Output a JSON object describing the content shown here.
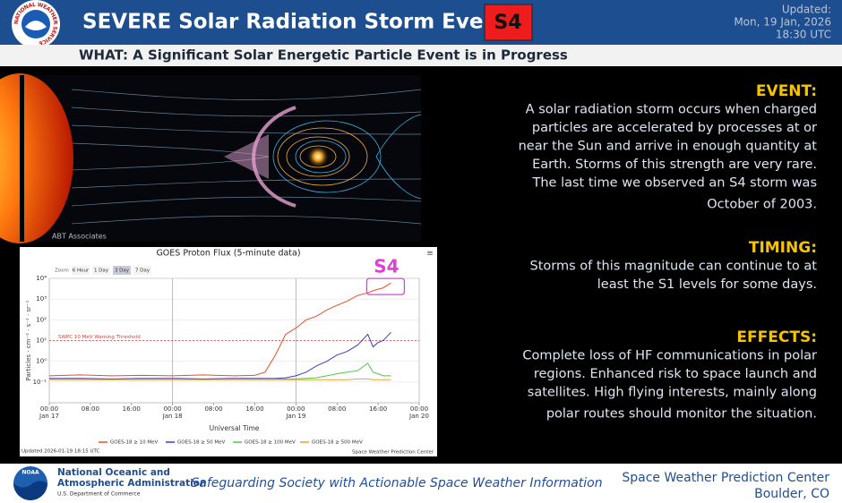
{
  "header": {
    "logo_text": "NATIONAL WEATHER SERVICE",
    "title": "SEVERE Solar Radiation Storm Event",
    "badge": "S4",
    "updated_label": "Updated:",
    "updated_date": "Mon, 19 Jan, 2026",
    "updated_time": "18:30 UTC"
  },
  "subheader": "WHAT: A Significant Solar Energetic Particle Event is in Progress",
  "image_credit": "ABT Associates",
  "sections": [
    {
      "heading": "EVENT:",
      "lines": [
        "A solar radiation storm occurs when charged",
        "particles are accelerated by processes at or",
        "near the Sun and arrive in enough quantity at",
        "Earth. Storms of this strength are very rare.",
        "The last time we observed an S4 storm was",
        "October of 2003."
      ]
    },
    {
      "heading": "TIMING:",
      "lines": [
        "Storms of this magnitude can continue to at",
        "least the S1 levels for some days."
      ]
    },
    {
      "heading": "EFFECTS:",
      "lines": [
        "Complete loss of HF communications in polar",
        "regions. Enhanced risk to space launch and",
        "satellites. High flying interests, mainly along",
        "polar routes should monitor the situation."
      ]
    }
  ],
  "chart_data": {
    "type": "line",
    "title": "GOES Proton Flux (5-minute data)",
    "zoom": {
      "label": "Zoom",
      "options": [
        "6 Hour",
        "1 Day",
        "3 Day",
        "7 Day"
      ],
      "selected": 2
    },
    "ylabel": "Particles · cm⁻² · s⁻¹ · sr⁻¹",
    "xlabel": "Universal Time",
    "log_y": true,
    "grid": true,
    "ylim": [
      0.01,
      10000
    ],
    "yticks": [
      {
        "value": 10000,
        "label": "10⁴"
      },
      {
        "value": 1000,
        "label": "10³"
      },
      {
        "value": 100,
        "label": "10²"
      },
      {
        "value": 10,
        "label": "10¹"
      },
      {
        "value": 1,
        "label": "10⁰"
      },
      {
        "value": 0.1,
        "label": "10⁻¹"
      }
    ],
    "xlim": [
      0,
      72
    ],
    "xticks": [
      {
        "value": 0,
        "label": "00:00",
        "date": "Jan 17"
      },
      {
        "value": 8,
        "label": "08:00"
      },
      {
        "value": 16,
        "label": "16:00"
      },
      {
        "value": 24,
        "label": "00:00",
        "date": "Jan 18"
      },
      {
        "value": 32,
        "label": "08:00"
      },
      {
        "value": 40,
        "label": "16:00"
      },
      {
        "value": 48,
        "label": "00:00",
        "date": "Jan 19"
      },
      {
        "value": 56,
        "label": "08:00"
      },
      {
        "value": 64,
        "label": "16:00"
      },
      {
        "value": 72,
        "label": "00:00",
        "date": "Jan 20"
      }
    ],
    "day_lines": [
      24,
      48
    ],
    "threshold": {
      "value": 10,
      "label": "SWPC 10 MeV Warning Threshold",
      "color": "#e03a3a"
    },
    "annotation": {
      "label": "S4",
      "color": "#e040d8"
    },
    "x": [
      0,
      6,
      12,
      18,
      24,
      30,
      36,
      40,
      42,
      44,
      46,
      48,
      50,
      52,
      54,
      56,
      58,
      60,
      62,
      63,
      64,
      65,
      66.5
    ],
    "series": [
      {
        "name": "GOES-18 ≥ 10 MeV",
        "color": "#e8502a",
        "values": [
          0.2,
          0.22,
          0.2,
          0.21,
          0.2,
          0.22,
          0.2,
          0.21,
          0.3,
          2,
          20,
          40,
          100,
          150,
          300,
          500,
          800,
          1500,
          2000,
          2500,
          3000,
          3500,
          6000
        ]
      },
      {
        "name": "GOES-18 ≥ 50 MeV",
        "color": "#3a3ad0",
        "values": [
          0.15,
          0.15,
          0.14,
          0.15,
          0.15,
          0.14,
          0.15,
          0.15,
          0.15,
          0.15,
          0.16,
          0.2,
          0.3,
          0.6,
          1,
          2,
          3,
          6,
          20,
          5,
          8,
          10,
          25
        ]
      },
      {
        "name": "GOES-18 ≥ 100 MeV",
        "color": "#50c850",
        "values": [
          0.14,
          0.14,
          0.13,
          0.14,
          0.14,
          0.13,
          0.14,
          0.14,
          0.14,
          0.14,
          0.14,
          0.14,
          0.15,
          0.16,
          0.2,
          0.25,
          0.3,
          0.35,
          0.8,
          0.3,
          0.25,
          0.2,
          0.2
        ]
      },
      {
        "name": "GOES-18 ≥ 500 MeV",
        "color": "#f0a030",
        "values": [
          0.13,
          0.13,
          0.13,
          0.13,
          0.13,
          0.13,
          0.13,
          0.13,
          0.13,
          0.13,
          0.13,
          0.13,
          0.13,
          0.13,
          0.13,
          0.13,
          0.13,
          0.14,
          0.14,
          0.13,
          0.13,
          0.13,
          0.13
        ]
      }
    ],
    "updated": "Updated 2026-01-19 18:15 UTC",
    "credit": "Space Weather Prediction Center"
  },
  "footer": {
    "noaa": "NOAA",
    "org_lines": [
      "National Oceanic and",
      "Atmospheric Administration"
    ],
    "dept": "U.S. Department of Commerce",
    "tagline": "Safeguarding Society with Actionable Space Weather Information",
    "center": "Space Weather Prediction Center",
    "location": "Boulder, CO"
  }
}
